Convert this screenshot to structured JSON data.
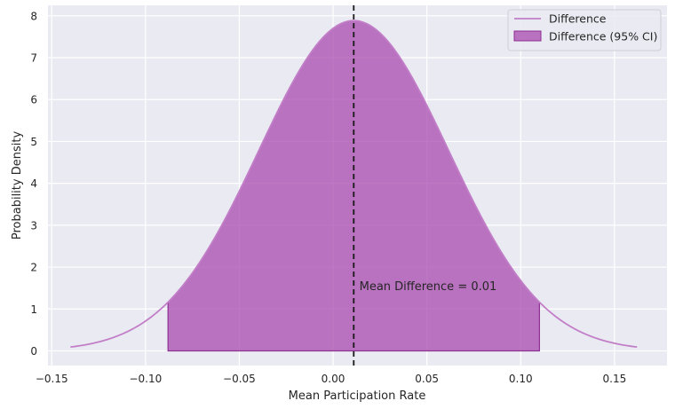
{
  "chart_data": {
    "type": "area",
    "title": "",
    "xlabel": "Mean Participation Rate",
    "ylabel": "Probability Density",
    "xlim": [
      -0.152,
      0.178
    ],
    "ylim": [
      -0.35,
      8.25
    ],
    "x_ticks": [
      -0.15,
      -0.1,
      -0.05,
      0.0,
      0.05,
      0.1,
      0.15
    ],
    "x_tick_labels": [
      "−0.15",
      "−0.10",
      "−0.05",
      "0.00",
      "0.05",
      "0.10",
      "0.15"
    ],
    "y_ticks": [
      0,
      1,
      2,
      3,
      4,
      5,
      6,
      7,
      8
    ],
    "y_tick_labels": [
      "0",
      "1",
      "2",
      "3",
      "4",
      "5",
      "6",
      "7",
      "8"
    ],
    "grid": true,
    "legend_position": "top-right",
    "series": [
      {
        "name": "Difference",
        "kind": "line",
        "color": "#c27fc8",
        "distribution": "normal",
        "mean": 0.011,
        "std": 0.0506,
        "x_range": [
          -0.14,
          0.162
        ]
      },
      {
        "name": "Difference (95% CI)",
        "kind": "area",
        "color": "#a84aad",
        "edge_color": "#8e2f94",
        "x_range": [
          -0.088,
          0.11
        ]
      }
    ],
    "mean_line": {
      "x": 0.011,
      "color": "#1a1a1a",
      "style": "dashed"
    },
    "annotation": {
      "text": "Mean Difference = 0.01",
      "x": 0.014,
      "y": 1.45
    }
  }
}
